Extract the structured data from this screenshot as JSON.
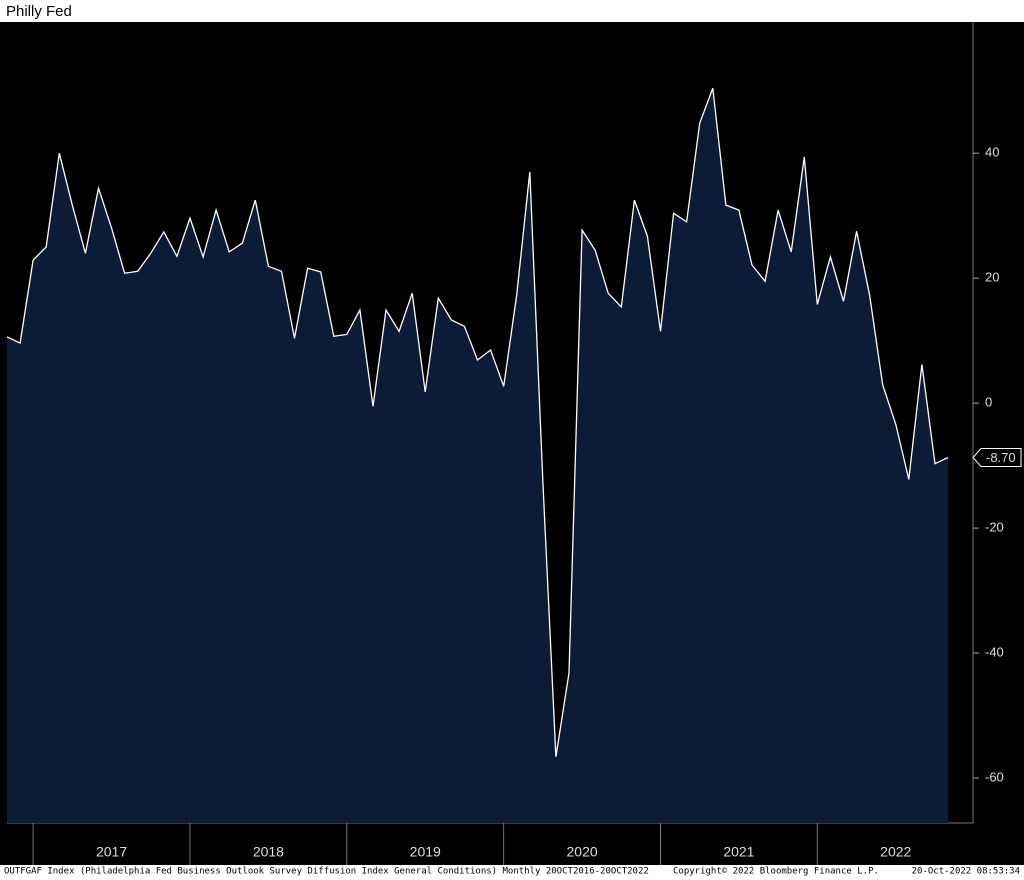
{
  "chart_data": {
    "type": "area",
    "title": "Philly Fed",
    "footer_left": "OUTFGAF Index (Philadelphia Fed Business Outlook Survey Diffusion Index General Conditions)  Monthly 20OCT2016-20OCT2022",
    "footer_mid": "Copyright© 2022 Bloomberg Finance L.P.",
    "footer_right": "20-Oct-2022 08:53:34",
    "year_labels": [
      "2017",
      "2018",
      "2019",
      "2020",
      "2021",
      "2022"
    ],
    "values": [
      10.6,
      9.6,
      22.9,
      25,
      40,
      31.7,
      24,
      34.4,
      28,
      20.8,
      21.1,
      24,
      27.4,
      23.5,
      29.6,
      23.4,
      30.9,
      24.2,
      25.6,
      32.5,
      21.9,
      21.1,
      10.4,
      21.6,
      21,
      10.7,
      11,
      14.9,
      -0.5,
      14.9,
      11.5,
      17.6,
      1.8,
      16.8,
      13.3,
      12.3,
      6.9,
      8.5,
      2.7,
      17.3,
      37,
      -12.7,
      -56.6,
      -43.2,
      27.7,
      24.5,
      17.6,
      15.4,
      32.5,
      26.7,
      11.5,
      30.4,
      29,
      44.8,
      50.4,
      31.7,
      30.9,
      22.1,
      19.5,
      30.9,
      24.2,
      39.4,
      15.8,
      23.4,
      16.3,
      27.5,
      17.3,
      2.9,
      -3.4,
      -12.2,
      6.2,
      -9.7,
      -8.7
    ],
    "value_labels": [
      null,
      null,
      null,
      null,
      null,
      null,
      null,
      null,
      null,
      null,
      null,
      null,
      null,
      null,
      null,
      null,
      null,
      null,
      null,
      null,
      null,
      null,
      null,
      null,
      null,
      null,
      null,
      null,
      null,
      null,
      null,
      null,
      null,
      null,
      null,
      null,
      null,
      null,
      null,
      null,
      null,
      null,
      null,
      null,
      null,
      null,
      null,
      null,
      null,
      null,
      null,
      null,
      null,
      null,
      null,
      null,
      null,
      null,
      null,
      null,
      null,
      null,
      null,
      null,
      null,
      null,
      null,
      null,
      null,
      null,
      null,
      null,
      "-8.70"
    ],
    "color": "#0c1b36",
    "line_color": "#ffffff",
    "ylim": [
      -67.2,
      61
    ],
    "yticks": [
      -60,
      -40,
      -20,
      0,
      20,
      40
    ]
  }
}
